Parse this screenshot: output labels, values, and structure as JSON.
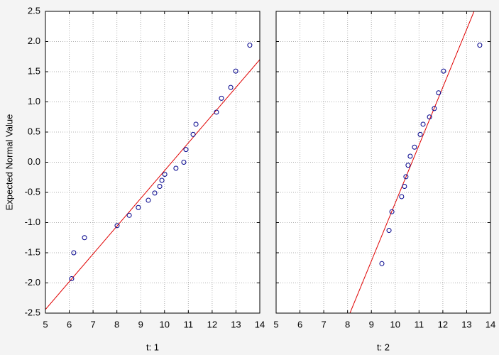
{
  "chart_data": [
    {
      "type": "scatter",
      "y_label": "Expected Normal Value",
      "x_label": "t: 1",
      "color": "#00008b",
      "line_color": "#e00000",
      "x": [
        6.1,
        6.19,
        6.64,
        8.01,
        8.52,
        8.9,
        9.32,
        9.59,
        9.8,
        9.89,
        10.01,
        10.48,
        10.81,
        10.9,
        11.2,
        11.32,
        12.18,
        12.39,
        12.78,
        12.99,
        13.58
      ],
      "values": [
        -1.93,
        -1.5,
        -1.25,
        -1.05,
        -0.88,
        -0.75,
        -0.63,
        -0.51,
        -0.4,
        -0.3,
        -0.2,
        -0.1,
        0.0,
        0.21,
        0.46,
        0.63,
        0.83,
        1.06,
        1.24,
        1.51,
        1.94
      ],
      "fit_line": {
        "x": [
          5,
          14
        ],
        "y": [
          -2.44,
          1.7
        ]
      },
      "xlim": [
        5,
        14
      ],
      "xticks": [
        5,
        6,
        7,
        8,
        9,
        10,
        11,
        12,
        13,
        14
      ],
      "ylim": [
        -2.5,
        2.5
      ],
      "yticks": [
        -2.5,
        {
          "value": -2,
          "label": "-2.0"
        },
        -1.5,
        {
          "value": -1,
          "label": "-1.0"
        },
        -0.5,
        {
          "value": 0,
          "label": "0.0"
        },
        0.5,
        {
          "value": 1,
          "label": "1.0"
        },
        1.5,
        {
          "value": 2,
          "label": "2.0"
        },
        2.5
      ],
      "grid": true
    },
    {
      "type": "scatter",
      "x_label": "t: 2",
      "color": "#00008b",
      "line_color": "#e00000",
      "x": [
        9.44,
        9.74,
        9.86,
        10.27,
        10.39,
        10.45,
        10.54,
        10.63,
        10.81,
        11.05,
        11.17,
        11.44,
        11.64,
        11.82,
        12.03,
        13.55
      ],
      "values": [
        -1.68,
        -1.13,
        -0.82,
        -0.57,
        -0.4,
        -0.24,
        -0.05,
        0.1,
        0.25,
        0.46,
        0.63,
        0.75,
        0.89,
        1.15,
        1.51,
        1.94
      ],
      "fit_line": {
        "x": [
          8.1,
          13.31
        ],
        "y": [
          -2.5,
          2.5
        ]
      },
      "xlim": [
        5,
        14
      ],
      "xticks": [
        5,
        6,
        7,
        8,
        9,
        10,
        11,
        12,
        13,
        14
      ],
      "ylim": [
        -2.5,
        2.5
      ],
      "grid": true
    }
  ]
}
